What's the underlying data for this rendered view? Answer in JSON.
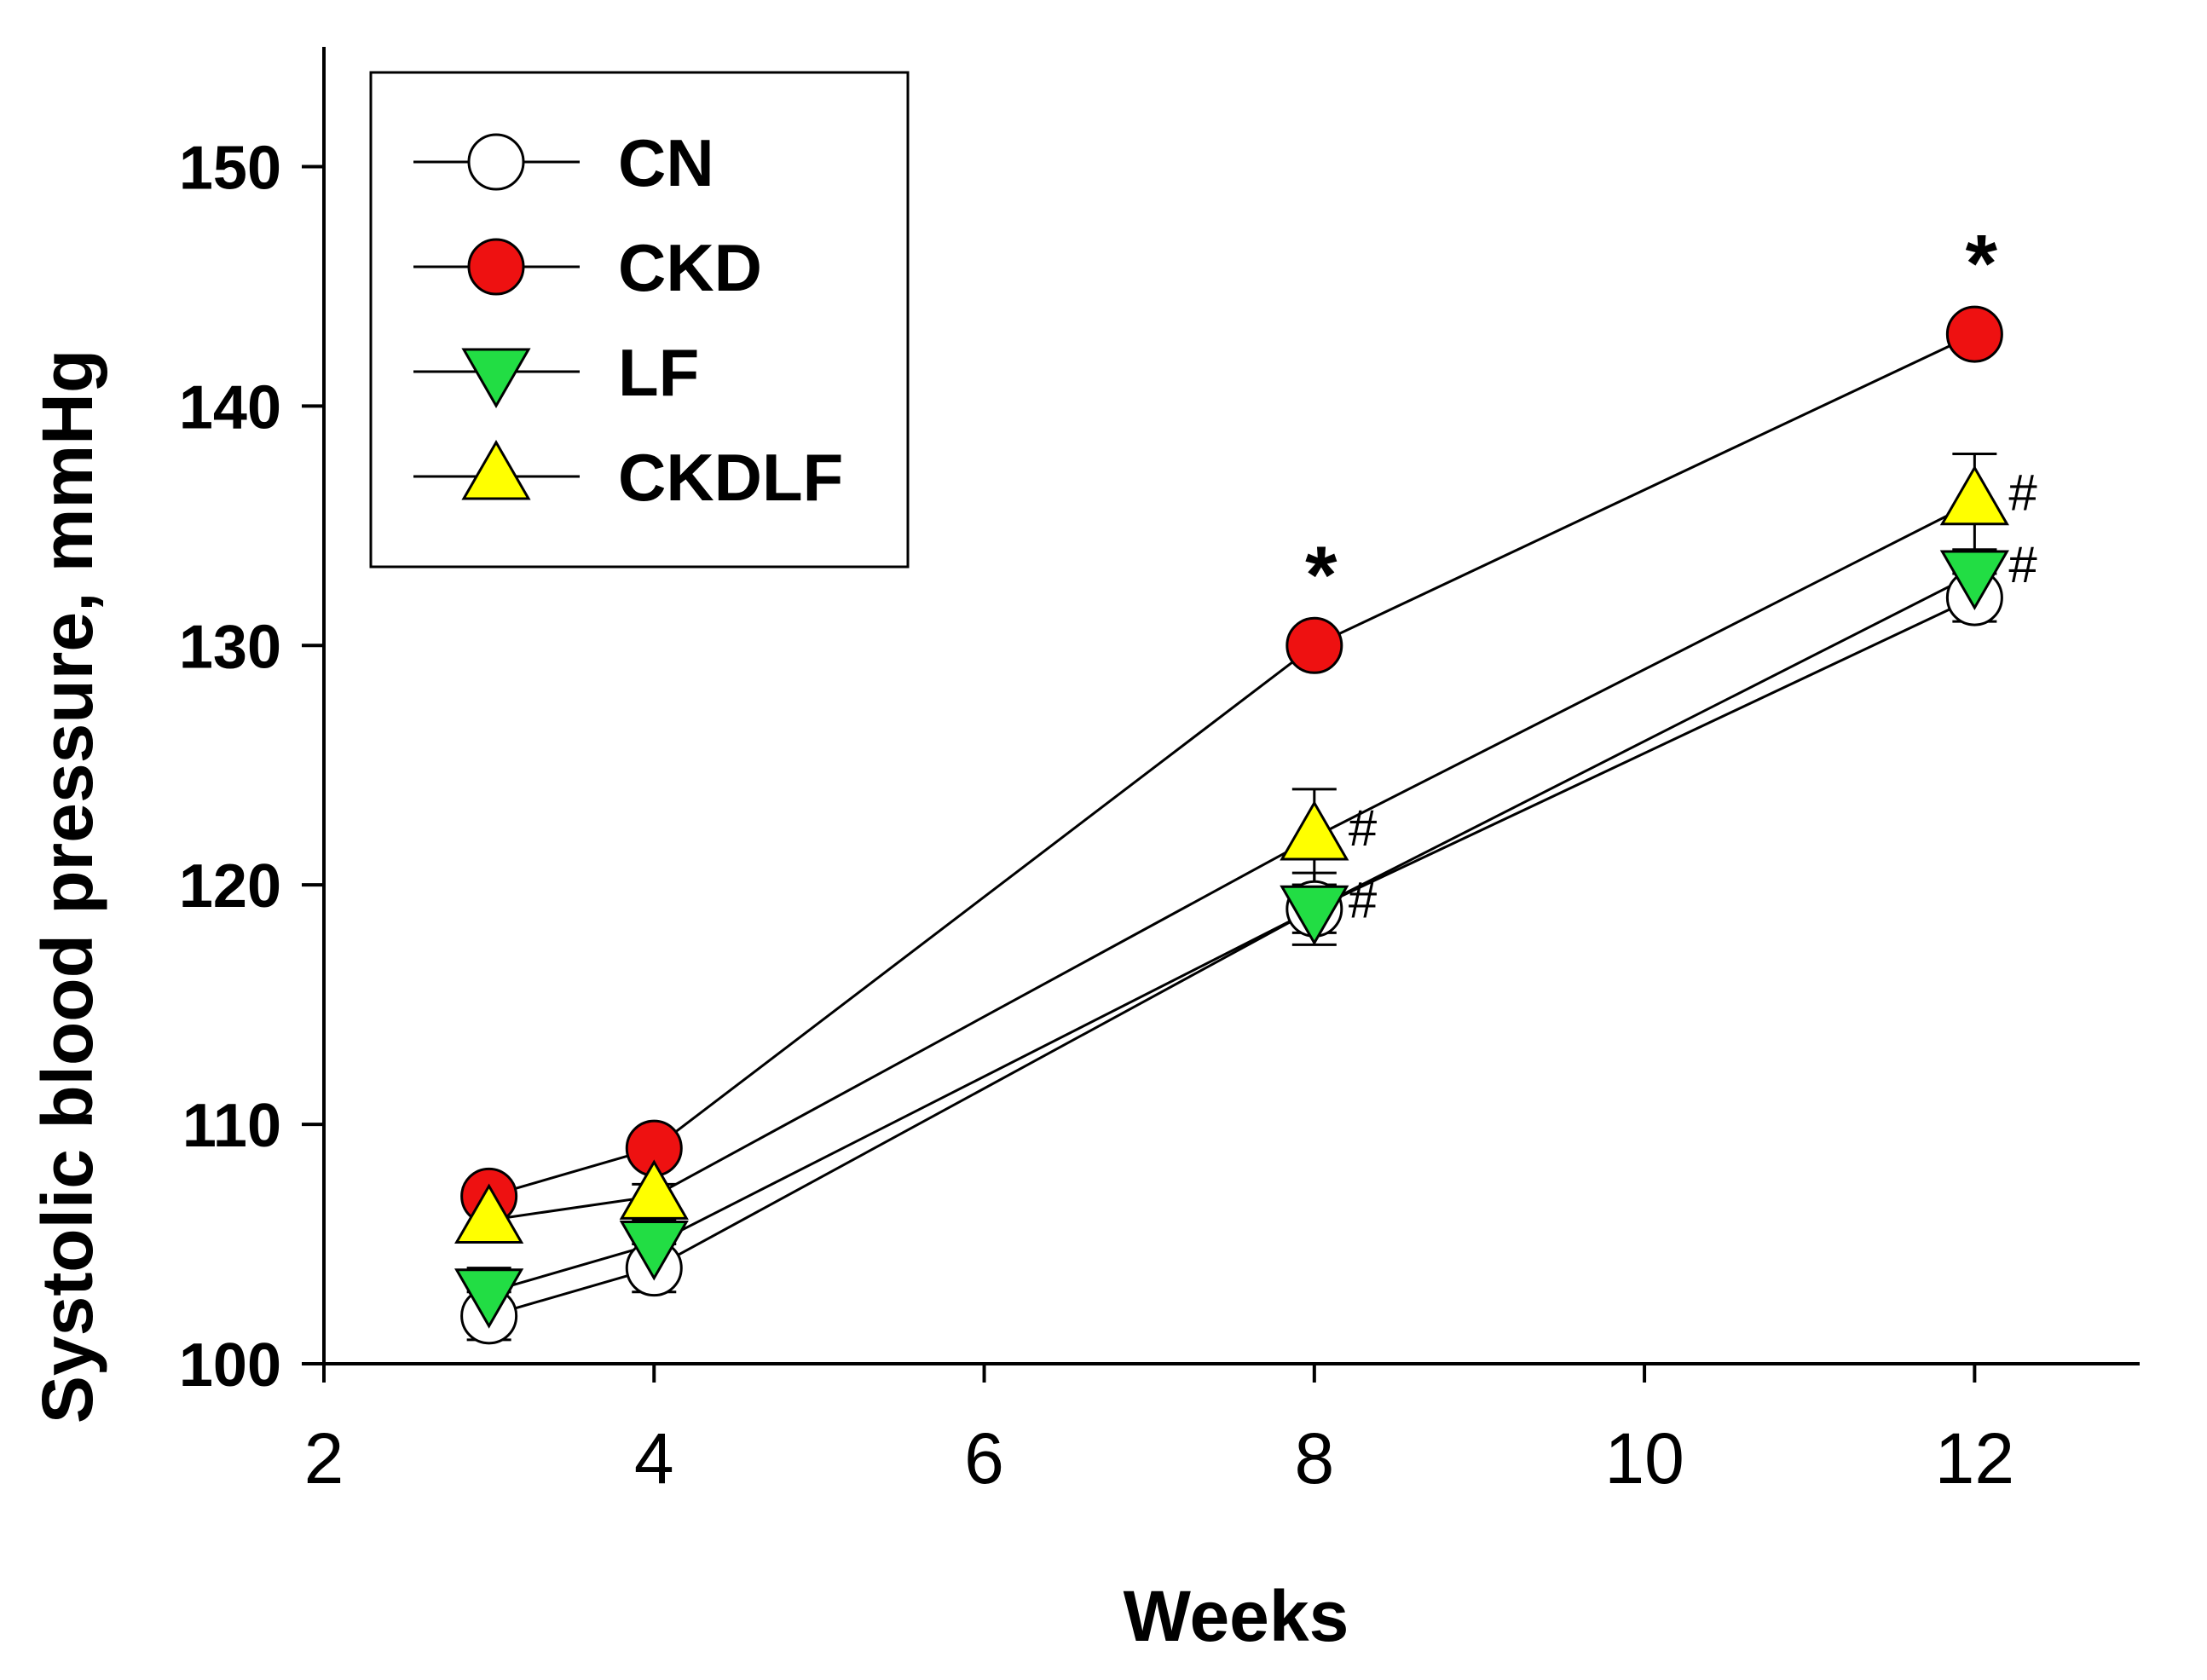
{
  "chart_data": {
    "type": "line",
    "title": "",
    "xlabel": "Weeks",
    "ylabel": "Systolic blood pressure, mmHg",
    "xlim": [
      2,
      13
    ],
    "ylim": [
      100,
      155
    ],
    "x_ticks": [
      2,
      4,
      6,
      8,
      10,
      12
    ],
    "y_ticks": [
      100,
      110,
      120,
      130,
      140,
      150
    ],
    "grid": false,
    "legend_position": "top-left",
    "series": [
      {
        "name": "CN",
        "marker": "circle",
        "fill": "#ffffff",
        "x": [
          3,
          4,
          8,
          12
        ],
        "y": [
          102,
          104,
          119,
          132
        ],
        "err": [
          1,
          1,
          1.5,
          1
        ]
      },
      {
        "name": "CKD",
        "marker": "circle",
        "fill": "#ee1111",
        "x": [
          3,
          4,
          8,
          12
        ],
        "y": [
          107,
          109,
          130,
          143
        ],
        "err": [
          0.5,
          0.5,
          0.5,
          0.5
        ]
      },
      {
        "name": "LF",
        "marker": "triangle-down",
        "fill": "#22dd44",
        "x": [
          3,
          4,
          8,
          12
        ],
        "y": [
          103,
          105,
          119,
          133
        ],
        "err": [
          1,
          1,
          1,
          1
        ]
      },
      {
        "name": "CKDLF",
        "marker": "triangle-up",
        "fill": "#ffff00",
        "x": [
          3,
          4,
          8,
          12
        ],
        "y": [
          106,
          107,
          122,
          136
        ],
        "err": [
          0.5,
          0.5,
          2,
          2
        ]
      }
    ],
    "annotations": [
      {
        "text": "*",
        "x": 8,
        "y": 130,
        "series": "CKD"
      },
      {
        "text": "*",
        "x": 12,
        "y": 143,
        "series": "CKD"
      },
      {
        "text": "#",
        "x": 8,
        "y": 122,
        "series": "CKDLF"
      },
      {
        "text": "#",
        "x": 8,
        "y": 119,
        "series": "LF"
      },
      {
        "text": "#",
        "x": 12,
        "y": 136,
        "series": "CKDLF"
      },
      {
        "text": "#",
        "x": 12,
        "y": 133,
        "series": "LF"
      }
    ]
  }
}
